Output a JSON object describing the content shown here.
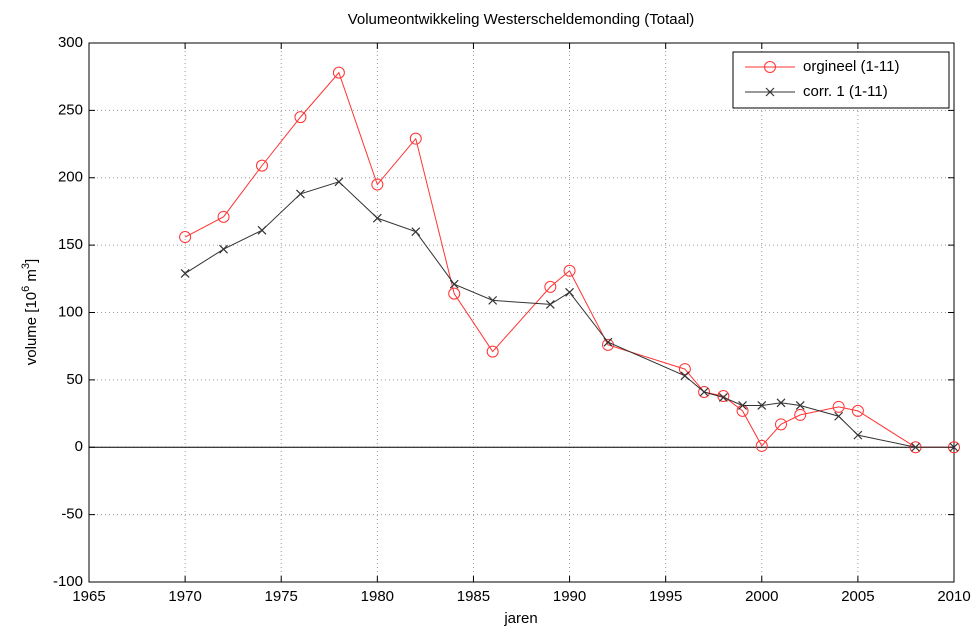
{
  "chart_data": {
    "type": "line",
    "title": "Volumeontwikkeling Westerscheldemonding (Totaal)",
    "xlabel": "jaren",
    "ylabel": [
      "volume [10",
      "6",
      " m",
      "3",
      "]"
    ],
    "x": [
      1970,
      1972,
      1974,
      1976,
      1978,
      1980,
      1982,
      1984,
      1986,
      1989,
      1990,
      1992,
      1996,
      1997,
      1998,
      1999,
      2000,
      2001,
      2002,
      2004,
      2005,
      2008,
      2010
    ],
    "series": [
      {
        "name": "orgineel (1-11)",
        "color": "#ff3333",
        "marker": "o",
        "values": [
          156,
          171,
          209,
          245,
          278,
          195,
          229,
          114,
          71,
          119,
          131,
          76,
          58,
          41,
          38,
          27,
          1,
          17,
          24,
          30,
          27,
          0,
          0
        ]
      },
      {
        "name": "corr. 1 (1-11)",
        "color": "#333333",
        "marker": "x",
        "values": [
          129,
          147,
          161,
          188,
          197,
          170,
          160,
          121,
          109,
          106,
          115,
          78,
          53,
          41,
          37,
          31,
          31,
          33,
          31,
          23,
          9,
          0,
          0
        ]
      }
    ],
    "xlim": [
      1965,
      2010
    ],
    "xticks": [
      1965,
      1970,
      1975,
      1980,
      1985,
      1990,
      1995,
      2000,
      2005,
      2010
    ],
    "ylim": [
      -100,
      300
    ],
    "yticks": [
      -100,
      -50,
      0,
      50,
      100,
      150,
      200,
      250,
      300
    ],
    "grid": true,
    "legend": "upper right"
  }
}
